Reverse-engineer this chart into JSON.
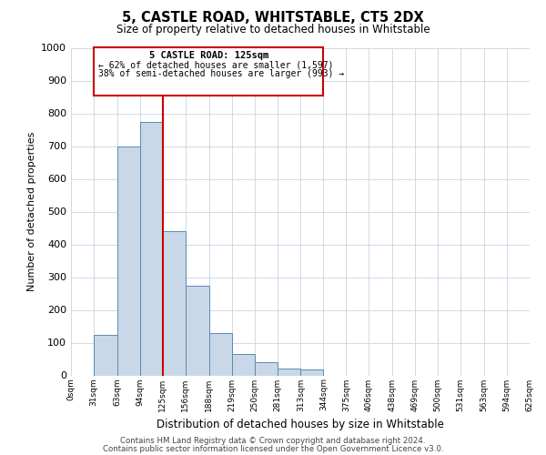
{
  "title": "5, CASTLE ROAD, WHITSTABLE, CT5 2DX",
  "subtitle": "Size of property relative to detached houses in Whitstable",
  "xlabel": "Distribution of detached houses by size in Whitstable",
  "ylabel": "Number of detached properties",
  "bin_edges": [
    0,
    31,
    63,
    94,
    125,
    156,
    188,
    219,
    250,
    281,
    313,
    344,
    375,
    406,
    438,
    469,
    500,
    531,
    563,
    594,
    625
  ],
  "bar_heights": [
    0,
    125,
    700,
    775,
    440,
    275,
    130,
    65,
    40,
    22,
    17,
    0,
    0,
    0,
    0,
    0,
    0,
    0,
    0,
    0
  ],
  "bar_color": "#c8d8e8",
  "bar_edgecolor": "#5a8ab0",
  "property_line_x": 125,
  "property_line_color": "#cc0000",
  "ylim": [
    0,
    1000
  ],
  "annotation_title": "5 CASTLE ROAD: 125sqm",
  "annotation_line1": "← 62% of detached houses are smaller (1,597)",
  "annotation_line2": "38% of semi-detached houses are larger (993) →",
  "annotation_box_color": "#cc0000",
  "footer1": "Contains HM Land Registry data © Crown copyright and database right 2024.",
  "footer2": "Contains public sector information licensed under the Open Government Licence v3.0.",
  "background_color": "#ffffff",
  "grid_color": "#c8d4e0",
  "yticks": [
    0,
    100,
    200,
    300,
    400,
    500,
    600,
    700,
    800,
    900,
    1000
  ]
}
